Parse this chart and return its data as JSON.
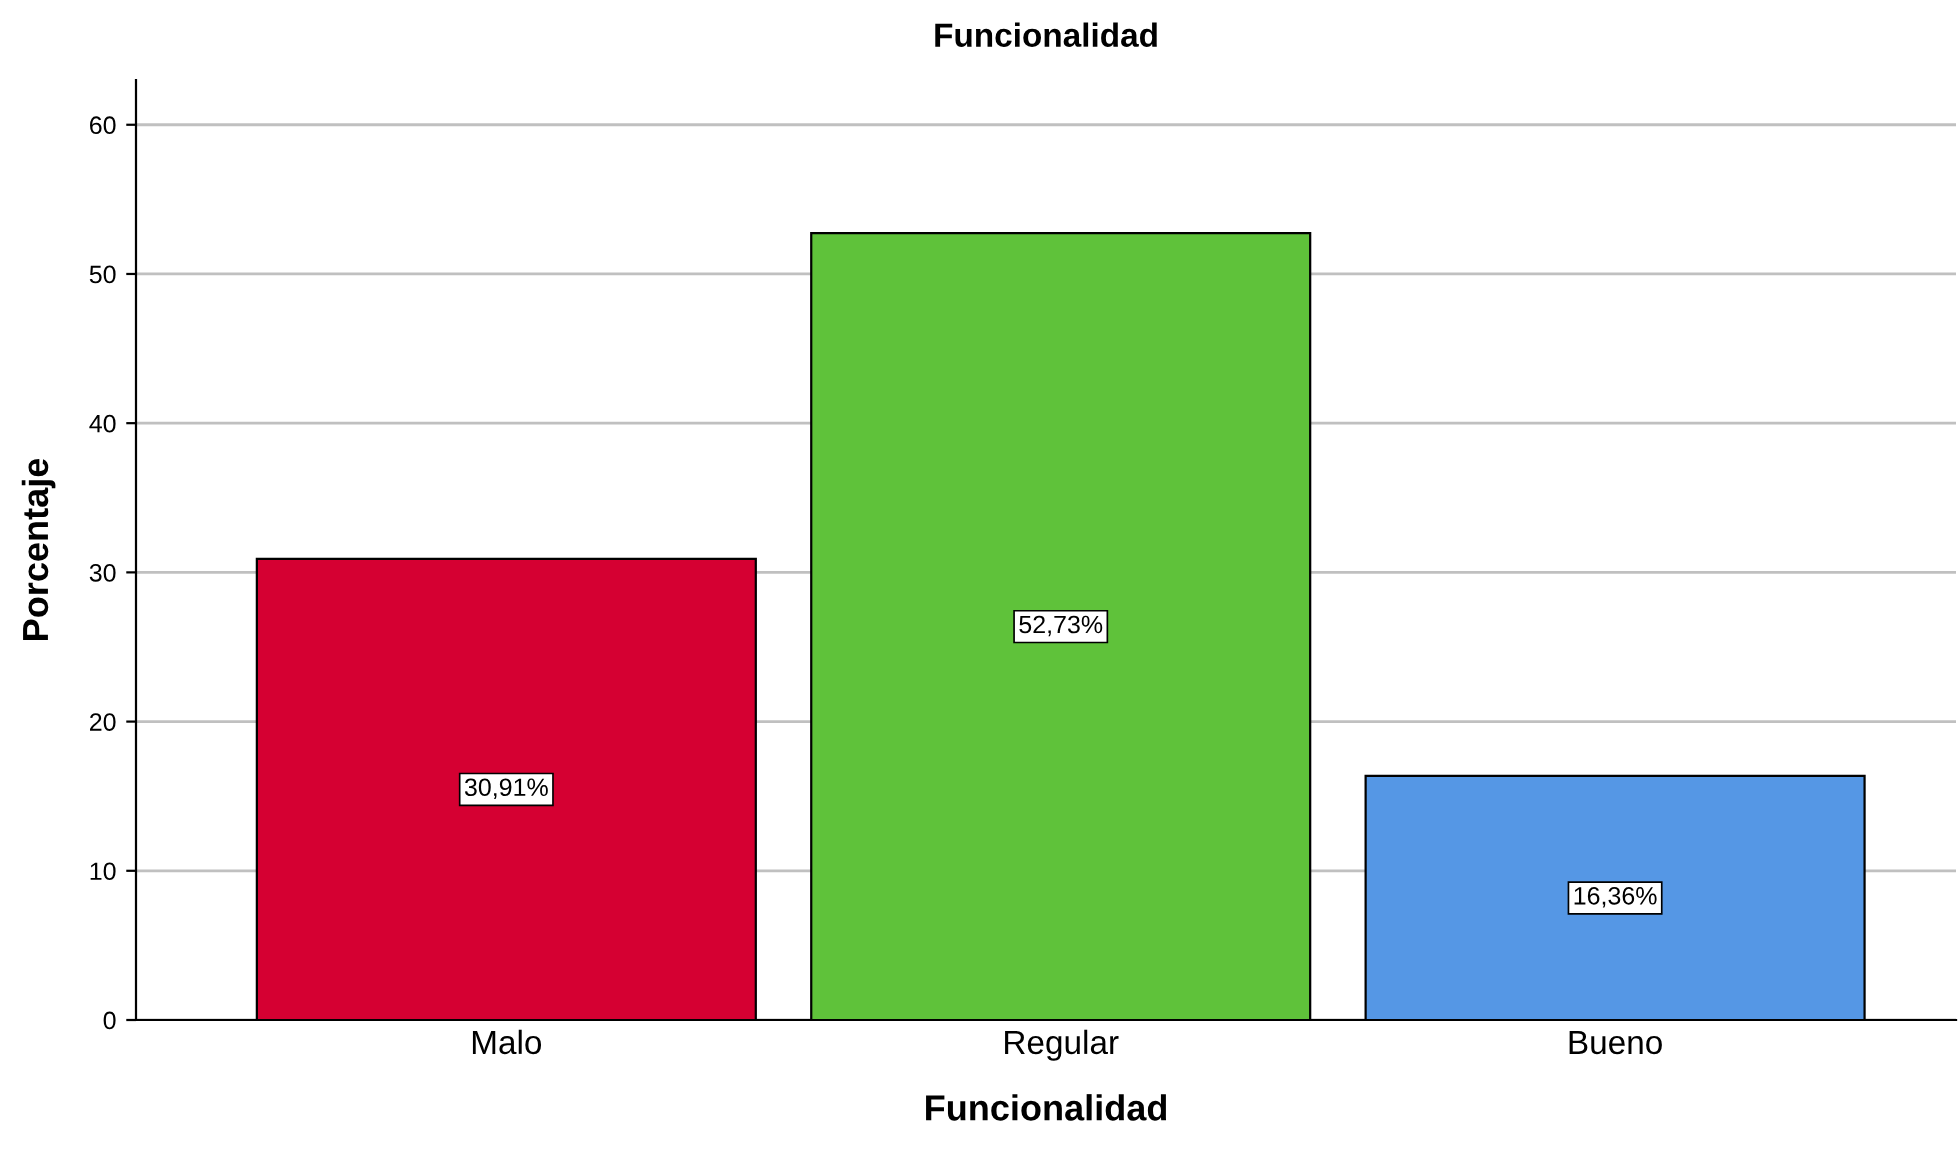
{
  "chart_data": {
    "type": "bar",
    "title": "Funcionalidad",
    "xlabel": "Funcionalidad",
    "ylabel": "Porcentaje",
    "categories": [
      "Malo",
      "Regular",
      "Bueno"
    ],
    "values": [
      30.91,
      52.73,
      16.36
    ],
    "colors": [
      "#d50032",
      "#5fc23a",
      "#5597e5"
    ],
    "value_labels": [
      "30,91%",
      "52,73%",
      "16,36%"
    ],
    "ylim": [
      0,
      63
    ],
    "yticks": [
      0,
      10,
      20,
      30,
      40,
      50,
      60
    ],
    "grid": "y",
    "legend": false
  }
}
